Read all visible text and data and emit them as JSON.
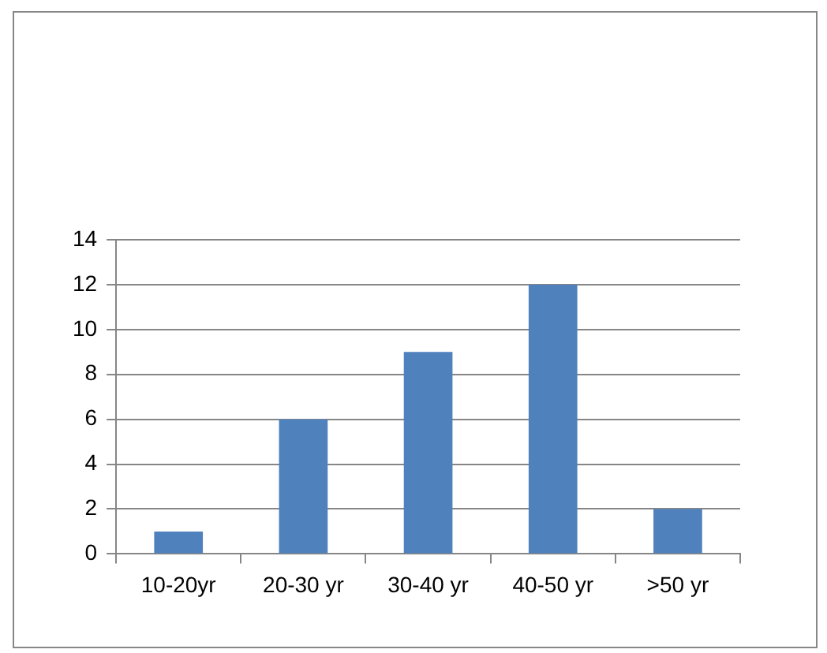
{
  "chart_data": {
    "type": "bar",
    "categories": [
      "10-20yr",
      "20-30 yr",
      "30-40 yr",
      "40-50 yr",
      ">50 yr"
    ],
    "values": [
      1,
      6,
      9,
      12,
      2
    ],
    "color": "#4f81bd",
    "ylim": [
      0,
      14
    ],
    "yticks": [
      0,
      2,
      4,
      6,
      8,
      10,
      12,
      14
    ],
    "grid": "y",
    "legend": false
  }
}
